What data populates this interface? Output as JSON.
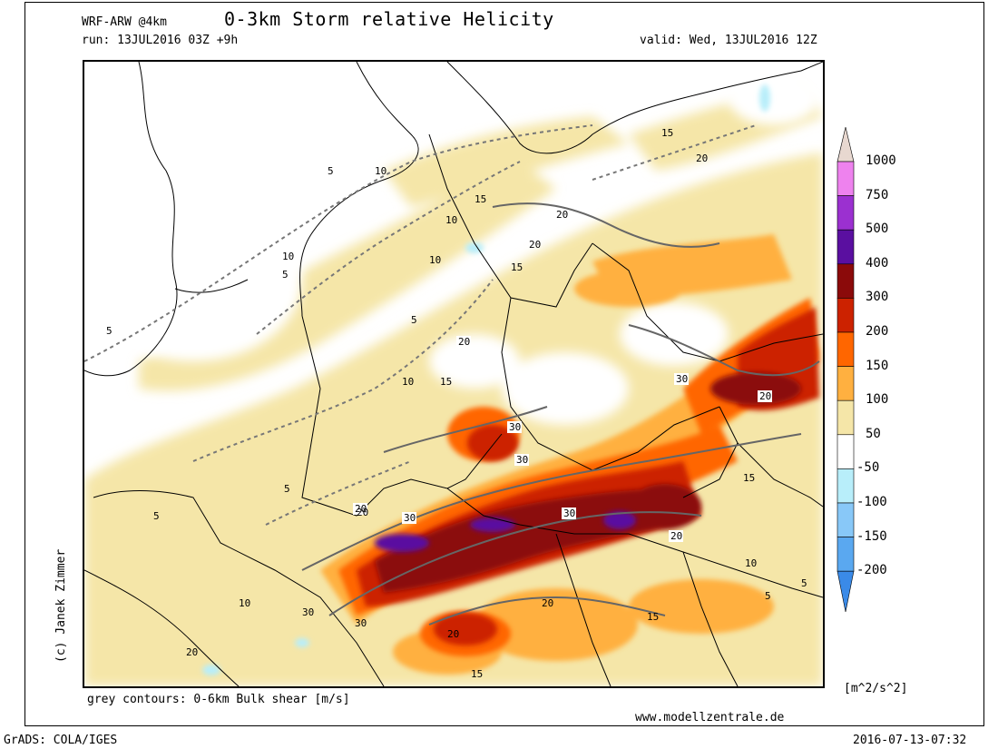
{
  "header": {
    "model": "WRF-ARW @4km",
    "title": "0-3km Storm relative Helicity",
    "run": "run: 13JUL2016 03Z +9h",
    "valid": "valid: Wed, 13JUL2016 12Z"
  },
  "map": {
    "contour_labels": [
      "5",
      "10",
      "15",
      "20",
      "30"
    ],
    "contour_description": "grey contours: 0-6km Bulk shear [m/s]",
    "copyright": "(c) Janek Zimmer",
    "website": "www.modellzentrale.de"
  },
  "colorbar": {
    "unit": "[m^2/s^2]",
    "levels": [
      {
        "label": "1000",
        "color": "#e8d8d0"
      },
      {
        "label": "750",
        "color": "#ee82ee"
      },
      {
        "label": "500",
        "color": "#9b30d0"
      },
      {
        "label": "400",
        "color": "#5a0fa0"
      },
      {
        "label": "300",
        "color": "#8b0a0a"
      },
      {
        "label": "200",
        "color": "#cc2200"
      },
      {
        "label": "150",
        "color": "#ff6600"
      },
      {
        "label": "100",
        "color": "#ffb040"
      },
      {
        "label": "50",
        "color": "#f5e6a8"
      },
      {
        "label": "-50",
        "color": "#ffffff"
      },
      {
        "label": "-100",
        "color": "#b8eefa"
      },
      {
        "label": "-150",
        "color": "#88c8f8"
      },
      {
        "label": "-200",
        "color": "#5aa8f0"
      }
    ],
    "bottom_color": "#3a8ae8"
  },
  "footer": {
    "grads": "GrADS: COLA/IGES",
    "timestamp": "2016-07-13-07:32"
  }
}
